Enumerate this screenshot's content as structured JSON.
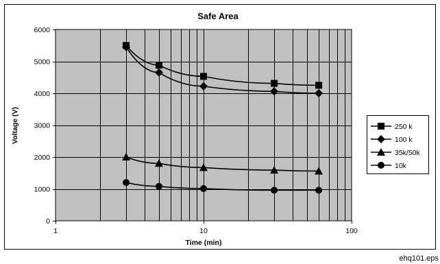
{
  "caption": "ehq101.eps",
  "chart_data": {
    "type": "line",
    "title": "Safe Area",
    "xlabel": "Time (min)",
    "ylabel": "Voltage (V)",
    "xscale": "log",
    "xlim": [
      1,
      100
    ],
    "ylim": [
      0,
      6000
    ],
    "xticks": [
      1,
      10,
      100
    ],
    "yticks": [
      0,
      1000,
      2000,
      3000,
      4000,
      5000,
      6000
    ],
    "grid": true,
    "legend_position": "right",
    "colors": {
      "plot_background": "#c0c0c0",
      "line": "#000000",
      "grid": "#000000"
    },
    "series": [
      {
        "name": "250 k",
        "marker": "square",
        "x": [
          3,
          5,
          10,
          30,
          60
        ],
        "y": [
          5500,
          4880,
          4530,
          4310,
          4250
        ]
      },
      {
        "name": "100 k",
        "marker": "diamond",
        "x": [
          3,
          5,
          10,
          30,
          60
        ],
        "y": [
          5450,
          4650,
          4220,
          4060,
          4000
        ]
      },
      {
        "name": "35k/50k",
        "marker": "triangle",
        "x": [
          3,
          5,
          10,
          30,
          60
        ],
        "y": [
          2000,
          1800,
          1670,
          1590,
          1560
        ]
      },
      {
        "name": "10k",
        "marker": "circle",
        "x": [
          3,
          5,
          10,
          30,
          60
        ],
        "y": [
          1200,
          1080,
          1010,
          960,
          960
        ]
      }
    ]
  }
}
